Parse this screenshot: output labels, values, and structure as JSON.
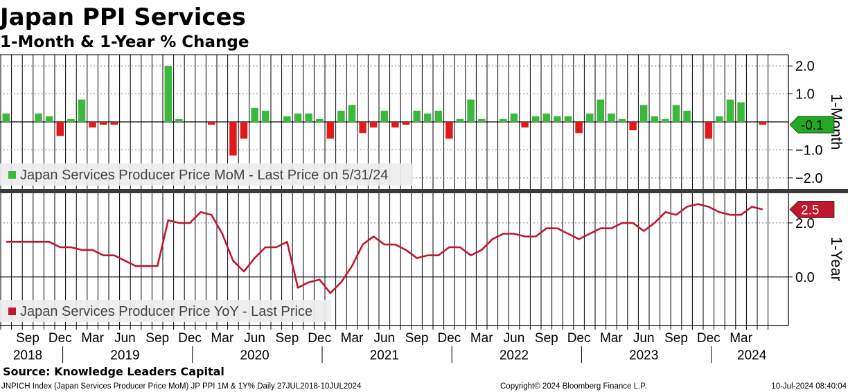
{
  "title": "Japan PPI Services",
  "subtitle": "1-Month & 1-Year % Change",
  "source": "Source: Knowledge Leaders Capital",
  "footer": {
    "left": "JNPICH Index (Japan Services Producer Price MoM) JP PPI 1M & 1Y%  Daily 27JUL2018-10JUL2024",
    "center": "Copyright© 2024 Bloomberg Finance L.P.",
    "right": "10-Jul-2024 08:40:04"
  },
  "colors": {
    "positive": "#3cb83c",
    "negative": "#e01a1a",
    "line": "#c0172f",
    "badge_top": "#22aa22",
    "badge_bottom": "#c0172f"
  },
  "chart_data": [
    {
      "type": "bar",
      "title": "1-Month",
      "ylabel": "1-Month",
      "legend": "Japan Services Producer Price MoM - Last Price on 5/31/24",
      "last_value": -0.1,
      "last_label": "-0.1",
      "ylim": [
        -2.4,
        2.4
      ],
      "yticks": [
        2.0,
        1.0,
        -1.0,
        -2.0
      ],
      "ytick_labels": [
        "2.0",
        "1.0",
        "−1.0",
        "−2.0"
      ],
      "grid": true,
      "start_month": "2018-07",
      "categories": [
        "Jul 2018",
        "Aug 2018",
        "Sep 2018",
        "Oct 2018",
        "Nov 2018",
        "Dec 2018",
        "Jan 2019",
        "Feb 2019",
        "Mar 2019",
        "Apr 2019",
        "May 2019",
        "Jun 2019",
        "Jul 2019",
        "Aug 2019",
        "Sep 2019",
        "Oct 2019",
        "Nov 2019",
        "Dec 2019",
        "Jan 2020",
        "Feb 2020",
        "Mar 2020",
        "Apr 2020",
        "May 2020",
        "Jun 2020",
        "Jul 2020",
        "Aug 2020",
        "Sep 2020",
        "Oct 2020",
        "Nov 2020",
        "Dec 2020",
        "Jan 2021",
        "Feb 2021",
        "Mar 2021",
        "Apr 2021",
        "May 2021",
        "Jun 2021",
        "Jul 2021",
        "Aug 2021",
        "Sep 2021",
        "Oct 2021",
        "Nov 2021",
        "Dec 2021",
        "Jan 2022",
        "Feb 2022",
        "Mar 2022",
        "Apr 2022",
        "May 2022",
        "Jun 2022",
        "Jul 2022",
        "Aug 2022",
        "Sep 2022",
        "Oct 2022",
        "Nov 2022",
        "Dec 2022",
        "Jan 2023",
        "Feb 2023",
        "Mar 2023",
        "Apr 2023",
        "May 2023",
        "Jun 2023",
        "Jul 2023",
        "Aug 2023",
        "Sep 2023",
        "Oct 2023",
        "Nov 2023",
        "Dec 2023",
        "Jan 2024",
        "Feb 2024",
        "Mar 2024",
        "Apr 2024",
        "May 2024"
      ],
      "values": [
        0.3,
        0.0,
        0.0,
        0.3,
        0.2,
        -0.5,
        0.1,
        0.8,
        -0.2,
        -0.1,
        -0.1,
        0.0,
        0.0,
        0.0,
        0.0,
        2.0,
        0.1,
        0.0,
        0.0,
        -0.1,
        0.0,
        -1.2,
        -0.6,
        0.5,
        0.4,
        0.0,
        0.2,
        0.3,
        0.3,
        0.1,
        -0.6,
        0.4,
        0.6,
        -0.4,
        -0.2,
        0.4,
        -0.2,
        -0.1,
        0.4,
        0.3,
        0.4,
        -0.6,
        0.1,
        0.8,
        0.1,
        0.0,
        0.1,
        0.3,
        -0.2,
        0.2,
        0.3,
        0.2,
        0.2,
        -0.4,
        0.3,
        0.8,
        0.3,
        0.1,
        -0.3,
        0.6,
        0.2,
        0.1,
        0.6,
        0.4,
        0.0,
        -0.6,
        0.2,
        0.8,
        0.7,
        0.0,
        -0.1
      ]
    },
    {
      "type": "line",
      "title": "1-Year",
      "ylabel": "1-Year",
      "legend": "Japan Services Producer Price YoY - Last Price",
      "last_value": 2.5,
      "last_label": "2.5",
      "ylim": [
        -1.8,
        3.1
      ],
      "yticks": [
        2.0,
        0.0
      ],
      "ytick_labels": [
        "2.0",
        "0.0"
      ],
      "grid": true,
      "start_month": "2018-07",
      "values": [
        1.3,
        1.3,
        1.3,
        1.3,
        1.3,
        1.1,
        1.1,
        1.0,
        1.0,
        0.8,
        0.8,
        0.6,
        0.4,
        0.4,
        0.4,
        2.1,
        2.0,
        2.0,
        2.4,
        2.3,
        1.6,
        0.6,
        0.2,
        0.7,
        1.1,
        1.1,
        1.3,
        -0.4,
        -0.2,
        -0.1,
        -0.6,
        -0.2,
        0.4,
        1.2,
        1.5,
        1.2,
        1.2,
        1.0,
        0.7,
        0.8,
        0.8,
        1.1,
        1.1,
        0.8,
        1.0,
        1.4,
        1.6,
        1.6,
        1.5,
        1.5,
        1.8,
        1.8,
        1.6,
        1.4,
        1.6,
        1.8,
        1.8,
        2.0,
        2.0,
        1.7,
        2.0,
        2.4,
        2.3,
        2.6,
        2.7,
        2.6,
        2.4,
        2.3,
        2.3,
        2.6,
        2.5
      ]
    }
  ],
  "x_axis": {
    "month_labels": [
      {
        "label": "Sep",
        "month": "2018-09"
      },
      {
        "label": "Dec",
        "month": "2018-12"
      },
      {
        "label": "Mar",
        "month": "2019-03"
      },
      {
        "label": "Jun",
        "month": "2019-06"
      },
      {
        "label": "Sep",
        "month": "2019-09"
      },
      {
        "label": "Dec",
        "month": "2019-12"
      },
      {
        "label": "Mar",
        "month": "2020-03"
      },
      {
        "label": "Jun",
        "month": "2020-06"
      },
      {
        "label": "Sep",
        "month": "2020-09"
      },
      {
        "label": "Dec",
        "month": "2020-12"
      },
      {
        "label": "Mar",
        "month": "2021-03"
      },
      {
        "label": "Jun",
        "month": "2021-06"
      },
      {
        "label": "Sep",
        "month": "2021-09"
      },
      {
        "label": "Dec",
        "month": "2021-12"
      },
      {
        "label": "Mar",
        "month": "2022-03"
      },
      {
        "label": "Jun",
        "month": "2022-06"
      },
      {
        "label": "Sep",
        "month": "2022-09"
      },
      {
        "label": "Dec",
        "month": "2022-12"
      },
      {
        "label": "Mar",
        "month": "2023-03"
      },
      {
        "label": "Jun",
        "month": "2023-06"
      },
      {
        "label": "Sep",
        "month": "2023-09"
      },
      {
        "label": "Dec",
        "month": "2023-12"
      },
      {
        "label": "Mar",
        "month": "2024-03"
      }
    ],
    "year_labels": [
      {
        "label": "2018",
        "month": "2018-09"
      },
      {
        "label": "2019",
        "month": "2019-06"
      },
      {
        "label": "2020",
        "month": "2020-06"
      },
      {
        "label": "2021",
        "month": "2021-06"
      },
      {
        "label": "2022",
        "month": "2022-06"
      },
      {
        "label": "2023",
        "month": "2023-06"
      },
      {
        "label": "2024",
        "month": "2024-04"
      }
    ]
  }
}
